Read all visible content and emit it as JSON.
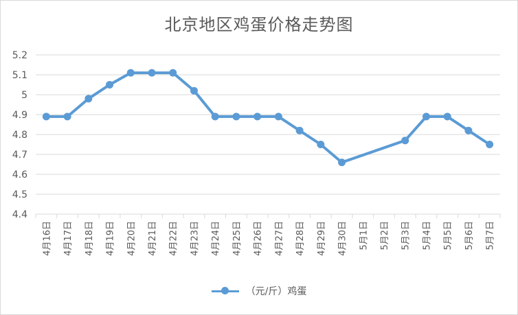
{
  "chart_data": {
    "type": "line",
    "title": "北京地区鸡蛋价格走势图",
    "categories": [
      "4月16日",
      "4月17日",
      "4月18日",
      "4月19日",
      "4月20日",
      "4月21日",
      "4月22日",
      "4月23日",
      "4月24日",
      "4月25日",
      "4月26日",
      "4月27日",
      "4月28日",
      "4月29日",
      "4月30日",
      "5月1日",
      "5月2日",
      "5月3日",
      "5月4日",
      "5月5日",
      "5月6日",
      "5月7日"
    ],
    "series": [
      {
        "name": "（元/斤）鸡蛋",
        "color": "#5b9bd5",
        "values": [
          4.89,
          4.89,
          4.98,
          5.05,
          5.11,
          5.11,
          5.11,
          5.02,
          4.89,
          4.89,
          4.89,
          4.89,
          4.82,
          4.75,
          4.66,
          null,
          null,
          4.77,
          4.89,
          4.89,
          4.82,
          4.75
        ]
      }
    ],
    "ylim": [
      4.4,
      5.2
    ],
    "yticks": [
      "4.4",
      "4.5",
      "4.6",
      "4.7",
      "4.8",
      "4.9",
      "5",
      "5.1",
      "5.2"
    ],
    "grid": "horizontal",
    "legend_position": "bottom"
  }
}
